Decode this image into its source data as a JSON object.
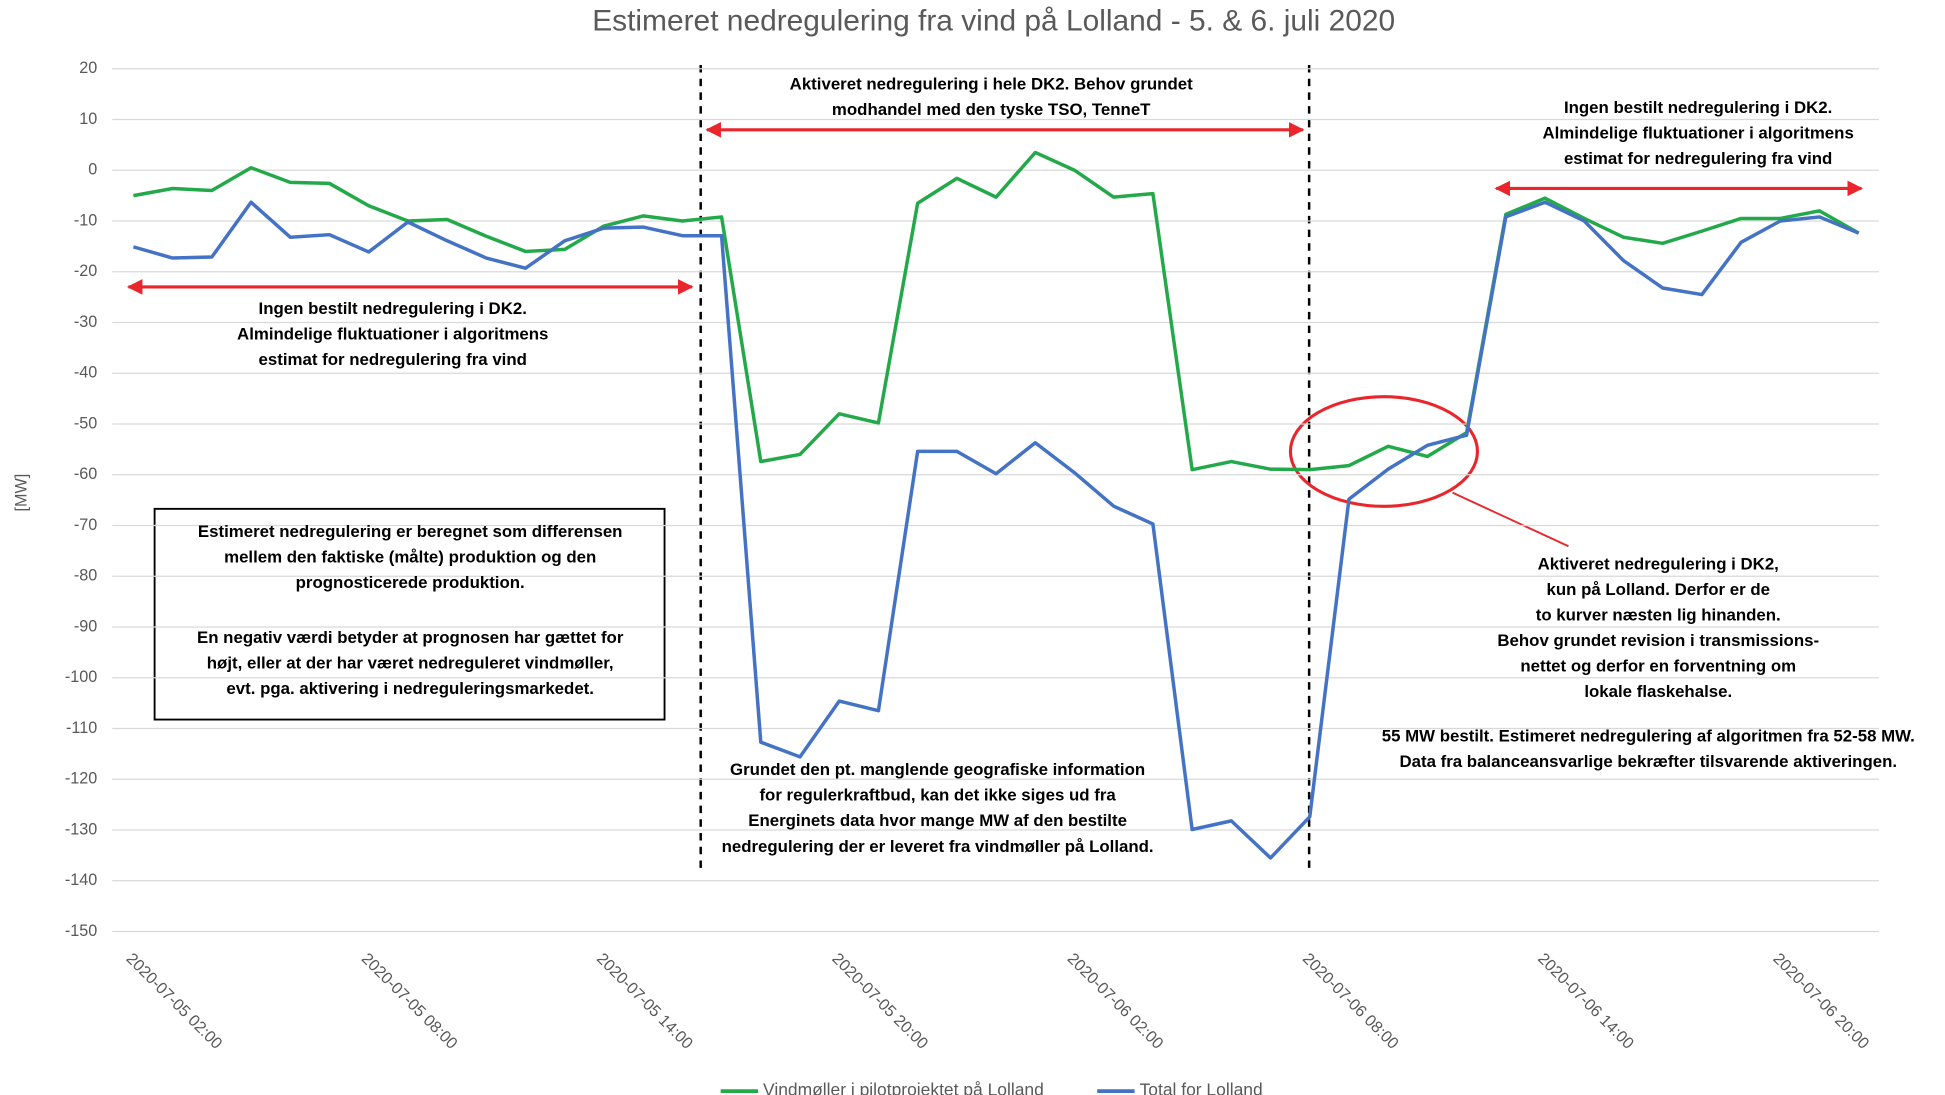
{
  "chart_data": {
    "type": "line",
    "title": "Estimeret nedregulering fra vind på Lolland - 5. & 6. juli 2020",
    "ylabel": "[MW]",
    "categories": [
      "2020-07-05 02:00",
      null,
      null,
      null,
      null,
      null,
      "2020-07-05 08:00",
      null,
      null,
      null,
      null,
      null,
      "2020-07-05 14:00",
      null,
      null,
      null,
      null,
      null,
      "2020-07-05 20:00",
      null,
      null,
      null,
      null,
      null,
      "2020-07-06 02:00",
      null,
      null,
      null,
      null,
      null,
      "2020-07-06 08:00",
      null,
      null,
      null,
      null,
      null,
      "2020-07-06 14:00",
      null,
      null,
      null,
      null,
      null,
      "2020-07-06 20:00",
      null,
      null
    ],
    "series": [
      {
        "name": "Vindmøller i pilotprojektet på Lolland",
        "color": "#23a94a",
        "values": [
          -5,
          -3.6,
          -4,
          0.5,
          -2.4,
          -2.6,
          -7,
          -10,
          -9.7,
          -13,
          -16,
          -15.6,
          -11,
          -9,
          -10,
          -9.2,
          -57.4,
          -56,
          -48,
          -49.8,
          -6.5,
          -1.6,
          -5.3,
          3.5,
          0,
          -5.3,
          -4.6,
          -59,
          -57.4,
          -58.9,
          -59,
          -58.2,
          -54.4,
          -56.4,
          -51.7,
          -8.7,
          -5.5,
          -9.5,
          -13.2,
          -14.4,
          -12,
          -9.5,
          -9.5,
          -8,
          -12.4
        ]
      },
      {
        "name": "Total for Lolland",
        "color": "#4472c4",
        "values": [
          -15.1,
          -17.3,
          -17.1,
          -6.3,
          -13.2,
          -12.7,
          -16.1,
          -10.2,
          -13.9,
          -17.3,
          -19.3,
          -13.9,
          -11.4,
          -11.2,
          -12.9,
          -12.9,
          -112.7,
          -115.6,
          -104.6,
          -106.5,
          -55.4,
          -55.4,
          -59.8,
          -53.7,
          -59.6,
          -66.2,
          -69.7,
          -129.9,
          -128.2,
          -135.5,
          -127.4,
          -64.8,
          -58.9,
          -54.2,
          -52.2,
          -9.2,
          -6.3,
          -10,
          -17.8,
          -23.2,
          -24.5,
          -14.2,
          -10,
          -9.2,
          -12.4
        ]
      }
    ],
    "ylim": [
      -150,
      20
    ],
    "yticks": [
      -150,
      -140,
      -130,
      -120,
      -110,
      -100,
      -90,
      -80,
      -70,
      -60,
      -50,
      -40,
      -30,
      -20,
      -10,
      0,
      10,
      20
    ],
    "grid": true,
    "legend": "bottom",
    "annotations": [
      {
        "lines": [
          "Aktiveret nedregulering i hele DK2. Behov grundet",
          "modhandel med den tyske TSO, TenneT"
        ]
      },
      {
        "lines": [
          "Ingen bestilt nedregulering i DK2.",
          "Almindelige fluktuationer i algoritmens",
          "estimat for nedregulering fra vind"
        ]
      },
      {
        "lines": [
          "Ingen bestilt nedregulering i DK2.",
          "Almindelige fluktuationer i algoritmens",
          "estimat for nedregulering fra vind"
        ]
      },
      {
        "lines": [
          "Estimeret nedregulering er beregnet som differensen",
          "mellem den faktiske (målte) produktion og den",
          "prognosticerede produktion."
        ]
      },
      {
        "lines": [
          "En negativ værdi betyder at prognosen har gættet for",
          "højt, eller at der har været nedreguleret vindmøller,",
          "evt. pga. aktivering i nedreguleringsmarkedet."
        ]
      },
      {
        "lines": [
          "Grundet den pt. manglende geografiske information",
          "for regulerkraftbud, kan det ikke siges ud fra",
          "Energinets data hvor mange MW af den bestilte",
          "nedregulering der er leveret fra vindmøller på Lolland."
        ]
      },
      {
        "lines": [
          "Aktiveret nedregulering i DK2,",
          "kun på Lolland. Derfor er de",
          "to kurver næsten lig hinanden.",
          "Behov grundet revision i transmissions-",
          "nettet og derfor en forventning om",
          "lokale flaskehalse."
        ]
      },
      {
        "lines": [
          "55 MW bestilt. Estimeret nedregulering af algoritmen fra 52-58 MW.",
          "Data fra balanceansvarlige bekræfter tilsvarende aktiveringen."
        ]
      }
    ]
  }
}
